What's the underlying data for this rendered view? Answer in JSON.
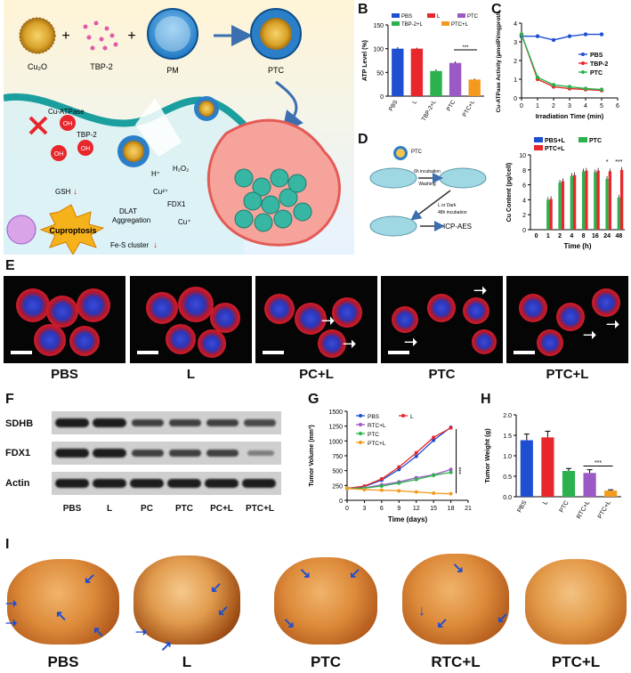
{
  "panels": {
    "A": "A",
    "B": "B",
    "C": "C",
    "D": "D",
    "E": "E",
    "F": "F",
    "G": "G",
    "H": "H",
    "I": "I"
  },
  "panelA": {
    "cu2o": "Cu₂O",
    "tbp2": "TBP-2",
    "pm": "PM",
    "ptc": "PTC",
    "plus": "+",
    "cu_atpase": "Cu-ATPase",
    "oh": "OH",
    "tbp2_inner": "TBP-2",
    "h_plus": "H⁺",
    "h2o2": "H₂O₂",
    "cu2": "Cu²⁺",
    "fdx1": "FDX1",
    "cu1": "Cu⁺",
    "gsh": "GSH",
    "dlat": "DLAT",
    "aggregation": "Aggregation",
    "cuproptosis": "Cuproptosis",
    "fes": "Fe-S cluster",
    "down": "↓"
  },
  "panelD": {
    "ptc": "PTC",
    "incubation": "6h incubation",
    "washing": "Washing",
    "light": "L or Dark",
    "incubation2": "48h incubation",
    "icp": "ICP-AES"
  },
  "panelE": {
    "labels": [
      "PBS",
      "L",
      "PC+L",
      "PTC",
      "PTC+L"
    ]
  },
  "panelF": {
    "rows": [
      "SDHB",
      "FDX1",
      "Actin"
    ],
    "lanes": [
      "PBS",
      "L",
      "PC",
      "PTC",
      "PC+L",
      "PTC+L"
    ]
  },
  "panelI": {
    "labels": [
      "PBS",
      "L",
      "PTC",
      "RTC+L",
      "PTC+L"
    ]
  },
  "colors": {
    "blue": "#1f4fd1",
    "red": "#e8262b",
    "green": "#2bb24c",
    "purple": "#9b59c6",
    "orange": "#f39a1e"
  },
  "chart_data": [
    {
      "id": "B",
      "type": "bar",
      "categories": [
        "PBS",
        "L",
        "TBP-2+L",
        "PTC",
        "PTC+L"
      ],
      "values": [
        100,
        100,
        53,
        70,
        35
      ],
      "errors": [
        3,
        2,
        3,
        3,
        2
      ],
      "ylabel": "ATP Level (%)",
      "ylim": [
        0,
        150
      ],
      "yticks": [
        "0",
        "50",
        "100",
        "150"
      ],
      "legend": [
        "PBS",
        "L",
        "PTC",
        "TBP-2+L",
        "PTC+L"
      ],
      "annotation": "***"
    },
    {
      "id": "C",
      "type": "line",
      "x": [
        0,
        1,
        2,
        3,
        4,
        5
      ],
      "series": [
        {
          "name": "PBS",
          "values": [
            3.3,
            3.3,
            3.1,
            3.3,
            3.4,
            3.4
          ]
        },
        {
          "name": "TBP-2",
          "values": [
            3.4,
            1.0,
            0.6,
            0.5,
            0.45,
            0.4
          ]
        },
        {
          "name": "PTC",
          "values": [
            3.4,
            1.1,
            0.7,
            0.6,
            0.5,
            0.45
          ]
        }
      ],
      "xlabel": "Irradiation Time (min)",
      "ylabel": "Cu-ATPase Activity (µmolPi/mgprot/h)",
      "xlim": [
        0,
        6
      ],
      "ylim": [
        0,
        4
      ],
      "xticks": [
        "0",
        "1",
        "2",
        "3",
        "4",
        "5",
        "6"
      ],
      "yticks": [
        "0",
        "1",
        "2",
        "3",
        "4"
      ]
    },
    {
      "id": "D",
      "type": "bar",
      "categories": [
        "0",
        "1",
        "2",
        "4",
        "8",
        "16",
        "24",
        "48"
      ],
      "series": [
        {
          "name": "PBS+L",
          "values": [
            0,
            0,
            0,
            0,
            0,
            0,
            0,
            0
          ]
        },
        {
          "name": "PTC",
          "values": [
            0,
            4.0,
            6.3,
            7.2,
            7.8,
            7.7,
            6.8,
            4.3
          ]
        },
        {
          "name": "PTC+L",
          "values": [
            0,
            4.1,
            6.5,
            7.3,
            7.9,
            7.9,
            7.8,
            8.0
          ]
        }
      ],
      "xlabel": "Time (h)",
      "ylabel": "Cu Content (pg/cell)",
      "ylim": [
        0,
        10
      ],
      "yticks": [
        "0",
        "2",
        "4",
        "6",
        "8",
        "10"
      ],
      "annotations": [
        "*",
        "***"
      ]
    },
    {
      "id": "G",
      "type": "line",
      "x": [
        0,
        3,
        6,
        9,
        12,
        15,
        18
      ],
      "series": [
        {
          "name": "PBS",
          "values": [
            200,
            230,
            340,
            520,
            740,
            1010,
            1230
          ]
        },
        {
          "name": "L",
          "values": [
            200,
            240,
            360,
            560,
            800,
            1060,
            1220
          ]
        },
        {
          "name": "RTC+L",
          "values": [
            200,
            210,
            260,
            310,
            380,
            430,
            520
          ]
        },
        {
          "name": "PTC",
          "values": [
            200,
            205,
            240,
            290,
            350,
            420,
            470
          ]
        },
        {
          "name": "PTC+L",
          "values": [
            200,
            180,
            170,
            160,
            140,
            120,
            110
          ]
        }
      ],
      "xlabel": "Time (days)",
      "ylabel": "Tumor Volume (mm³)",
      "xlim": [
        0,
        21
      ],
      "ylim": [
        0,
        1500
      ],
      "xticks": [
        "0",
        "3",
        "6",
        "9",
        "12",
        "15",
        "18",
        "21"
      ],
      "yticks": [
        "0",
        "250",
        "500",
        "750",
        "1000",
        "1250",
        "1500"
      ],
      "annotation": "***"
    },
    {
      "id": "H",
      "type": "bar",
      "categories": [
        "PBS",
        "L",
        "PTC",
        "RTC+L",
        "PTC+L"
      ],
      "values": [
        1.38,
        1.45,
        0.63,
        0.58,
        0.15
      ],
      "errors": [
        0.15,
        0.15,
        0.06,
        0.08,
        0.02
      ],
      "ylabel": "Tumor Weight (g)",
      "ylim": [
        0,
        2.0
      ],
      "yticks": [
        "0.0",
        "0.5",
        "1.0",
        "1.5",
        "2.0"
      ],
      "annotation": "***"
    }
  ]
}
